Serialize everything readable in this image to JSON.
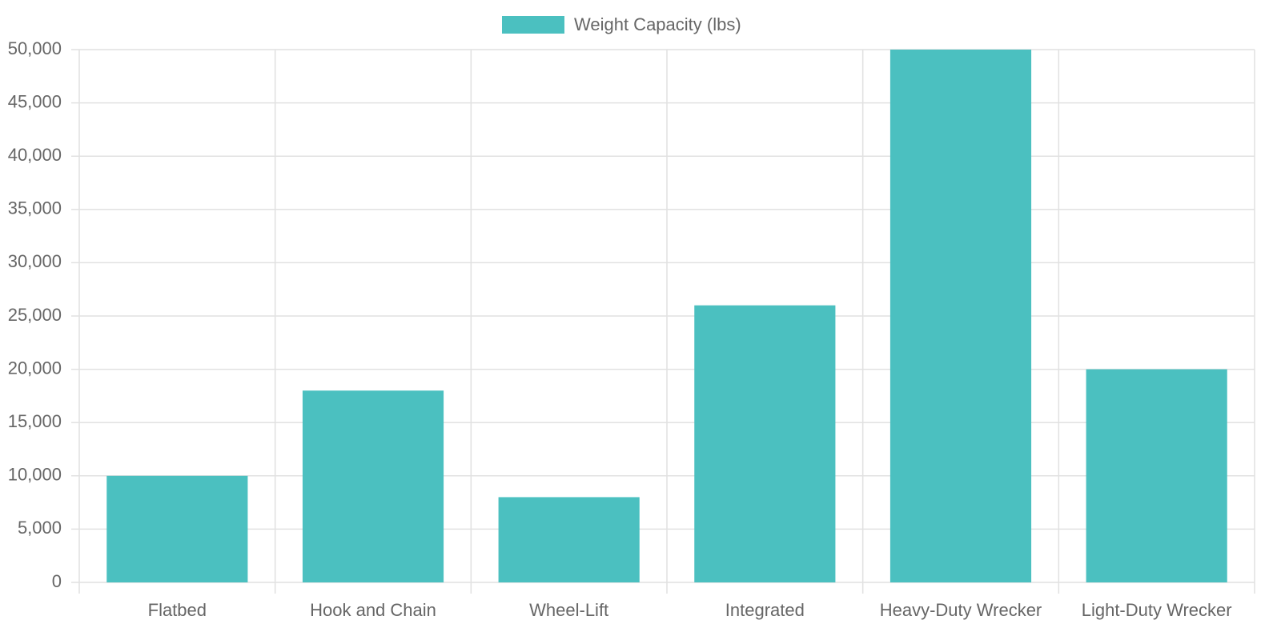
{
  "chart_data": {
    "type": "bar",
    "categories": [
      "Flatbed",
      "Hook and Chain",
      "Wheel-Lift",
      "Integrated",
      "Heavy-Duty Wrecker",
      "Light-Duty Wrecker"
    ],
    "series": [
      {
        "name": "Weight Capacity (lbs)",
        "color": "#4bc0c0",
        "values": [
          10000,
          18000,
          8000,
          26000,
          50000,
          20000
        ]
      }
    ],
    "ylim": [
      0,
      50000
    ],
    "yticks": [
      0,
      {
        "value": 5000,
        "label": "5,000"
      },
      {
        "value": 10000,
        "label": "10,000"
      },
      {
        "value": 15000,
        "label": "15,000"
      },
      {
        "value": 20000,
        "label": "20,000"
      },
      {
        "value": 25000,
        "label": "25,000"
      },
      {
        "value": 30000,
        "label": "30,000"
      },
      {
        "value": 35000,
        "label": "35,000"
      },
      {
        "value": 40000,
        "label": "40,000"
      },
      {
        "value": 45000,
        "label": "45,000"
      },
      {
        "value": 50000,
        "label": "50,000"
      }
    ],
    "grid": true
  }
}
